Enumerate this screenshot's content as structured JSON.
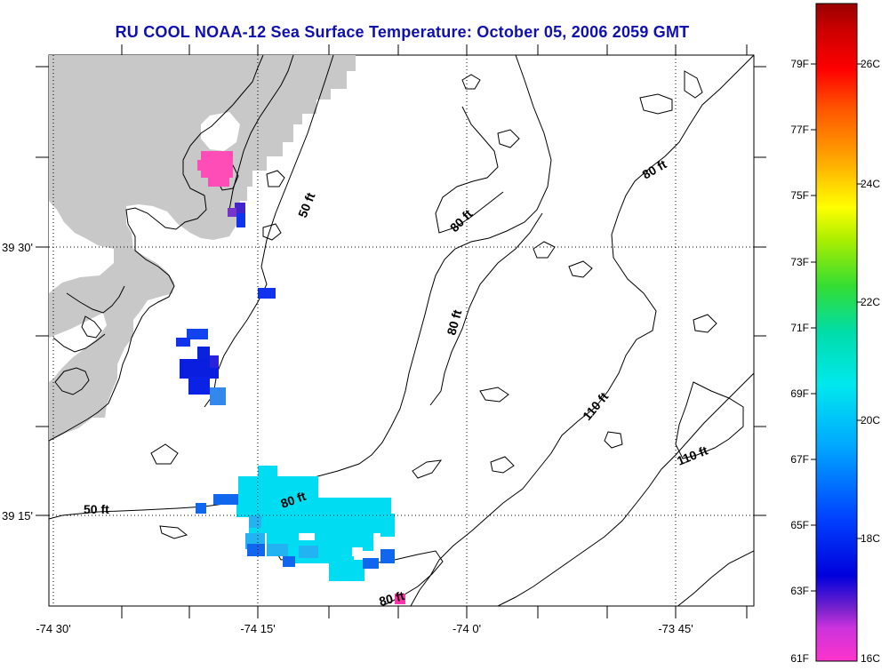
{
  "title": "RU COOL  NOAA-12  Sea Surface Temperature:  October 05, 2006 2059 GMT",
  "map": {
    "lon_ticks": [
      "-74 30'",
      "-74 15'",
      "-74 0'",
      "-73 45'"
    ],
    "lat_ticks": [
      "39 30'",
      "39 15'"
    ],
    "contour_labels": [
      "50 ft",
      "50 ft",
      "80 ft",
      "80 ft",
      "80 ft",
      "80 ft",
      "80 ft",
      "110 ft",
      "110 ft"
    ],
    "colors": {
      "land": "#c8c8c8",
      "background": "#ffffff",
      "contour": "#000000",
      "title": "#1010b0"
    }
  },
  "colorbar": {
    "fahrenheit_labels": [
      "79F",
      "77F",
      "75F",
      "73F",
      "71F",
      "69F",
      "67F",
      "65F",
      "63F",
      "61F"
    ],
    "celsius_labels": [
      "26C",
      "24C",
      "22C",
      "20C",
      "18C",
      "16C"
    ],
    "range_f": [
      61,
      81
    ],
    "range_c": [
      16,
      27
    ]
  },
  "sst_patches": [
    {
      "region": "north-bay",
      "temp_c": 16.2
    },
    {
      "region": "inlet",
      "temp_c": 17.0
    },
    {
      "region": "nearshore",
      "temp_c": 17.5
    },
    {
      "region": "south-offshore",
      "temp_c": 19.5
    },
    {
      "region": "south-point",
      "temp_c": 16.2
    }
  ]
}
